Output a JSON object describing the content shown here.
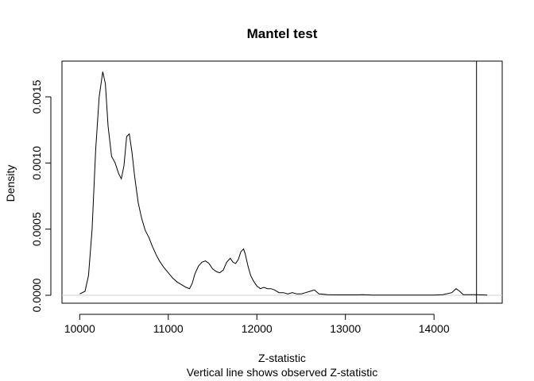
{
  "chart_data": {
    "type": "line",
    "title": "Mantel test",
    "xlabel": "Z-statistic",
    "subtitle": "Vertical line shows observed Z-statistic",
    "ylabel": "Density",
    "xlim": [
      9800,
      14770
    ],
    "ylim": [
      -6e-05,
      0.00177
    ],
    "xticks": [
      "10000",
      "11000",
      "12000",
      "13000",
      "14000"
    ],
    "yticks": [
      "0.0000",
      "0.0005",
      "0.0010",
      "0.0015"
    ],
    "baseline": 0,
    "observed": 14480,
    "grid": false,
    "series": [
      {
        "x": [
          10000,
          10060,
          10100,
          10140,
          10180,
          10220,
          10260,
          10290,
          10320,
          10360,
          10400,
          10440,
          10470,
          10500,
          10530,
          10560,
          10590,
          10620,
          10660,
          10700,
          10740,
          10780,
          10820,
          10860,
          10900,
          10950,
          11000,
          11050,
          11100,
          11150,
          11200,
          11240,
          11270,
          11300,
          11340,
          11380,
          11420,
          11460,
          11500,
          11540,
          11580,
          11620,
          11660,
          11700,
          11730,
          11760,
          11790,
          11820,
          11850,
          11870,
          11900,
          11930,
          11960,
          12000,
          12040,
          12080,
          12120,
          12160,
          12200,
          12250,
          12300,
          12350,
          12400,
          12450,
          12500,
          12550,
          12600,
          12650,
          12700,
          12800,
          12900,
          13000,
          13100,
          13200,
          13300,
          13400,
          13600,
          13800,
          14000,
          14100,
          14200,
          14250,
          14290,
          14330,
          14400,
          14480,
          14600
        ],
        "y": [
          1e-05,
          3e-05,
          0.00015,
          0.0005,
          0.0011,
          0.0015,
          0.00169,
          0.0016,
          0.00128,
          0.00105,
          0.001,
          0.00092,
          0.00088,
          0.00098,
          0.0012,
          0.00122,
          0.00108,
          0.0009,
          0.0007,
          0.00058,
          0.00049,
          0.00044,
          0.00037,
          0.00031,
          0.00026,
          0.00021,
          0.00017,
          0.00013,
          0.0001,
          8e-05,
          6e-05,
          5e-05,
          9e-05,
          0.00016,
          0.00022,
          0.00025,
          0.00026,
          0.00024,
          0.0002,
          0.00018,
          0.00017,
          0.00019,
          0.00025,
          0.00028,
          0.00025,
          0.00024,
          0.00027,
          0.00033,
          0.00035,
          0.00031,
          0.00022,
          0.00015,
          0.00011,
          7e-05,
          5e-05,
          6e-05,
          5e-05,
          5e-05,
          4e-05,
          2e-05,
          2e-05,
          1e-05,
          2e-05,
          1e-05,
          1e-05,
          2e-05,
          3e-05,
          4e-05,
          1e-05,
          5e-06,
          3e-06,
          3e-06,
          3e-06,
          5e-06,
          2e-06,
          2e-06,
          2e-06,
          2e-06,
          2e-06,
          5e-06,
          2e-05,
          5e-05,
          3e-05,
          5e-06,
          5e-06,
          5e-06,
          2e-06
        ]
      }
    ]
  }
}
